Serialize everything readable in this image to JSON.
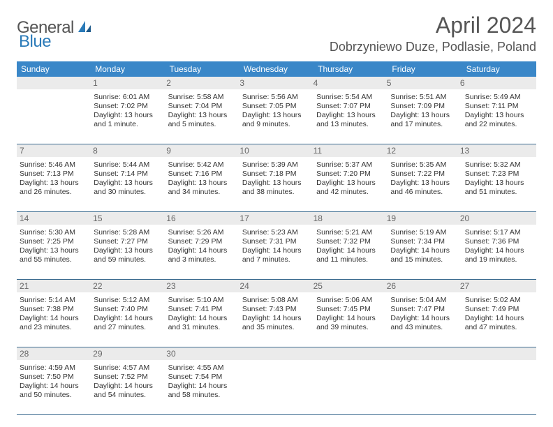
{
  "logo": {
    "word1": "General",
    "word2": "Blue"
  },
  "title": "April 2024",
  "location": "Dobrzyniewo Duze, Podlasie, Poland",
  "colors": {
    "header_bg": "#3a87c8",
    "rule": "#3a6a8f",
    "daynum_bg": "#ebebeb",
    "text": "#555555"
  },
  "weekdays": [
    "Sunday",
    "Monday",
    "Tuesday",
    "Wednesday",
    "Thursday",
    "Friday",
    "Saturday"
  ],
  "weeks": [
    [
      {
        "num": "",
        "lines": []
      },
      {
        "num": "1",
        "lines": [
          "Sunrise: 6:01 AM",
          "Sunset: 7:02 PM",
          "Daylight: 13 hours",
          "and 1 minute."
        ]
      },
      {
        "num": "2",
        "lines": [
          "Sunrise: 5:58 AM",
          "Sunset: 7:04 PM",
          "Daylight: 13 hours",
          "and 5 minutes."
        ]
      },
      {
        "num": "3",
        "lines": [
          "Sunrise: 5:56 AM",
          "Sunset: 7:05 PM",
          "Daylight: 13 hours",
          "and 9 minutes."
        ]
      },
      {
        "num": "4",
        "lines": [
          "Sunrise: 5:54 AM",
          "Sunset: 7:07 PM",
          "Daylight: 13 hours",
          "and 13 minutes."
        ]
      },
      {
        "num": "5",
        "lines": [
          "Sunrise: 5:51 AM",
          "Sunset: 7:09 PM",
          "Daylight: 13 hours",
          "and 17 minutes."
        ]
      },
      {
        "num": "6",
        "lines": [
          "Sunrise: 5:49 AM",
          "Sunset: 7:11 PM",
          "Daylight: 13 hours",
          "and 22 minutes."
        ]
      }
    ],
    [
      {
        "num": "7",
        "lines": [
          "Sunrise: 5:46 AM",
          "Sunset: 7:13 PM",
          "Daylight: 13 hours",
          "and 26 minutes."
        ]
      },
      {
        "num": "8",
        "lines": [
          "Sunrise: 5:44 AM",
          "Sunset: 7:14 PM",
          "Daylight: 13 hours",
          "and 30 minutes."
        ]
      },
      {
        "num": "9",
        "lines": [
          "Sunrise: 5:42 AM",
          "Sunset: 7:16 PM",
          "Daylight: 13 hours",
          "and 34 minutes."
        ]
      },
      {
        "num": "10",
        "lines": [
          "Sunrise: 5:39 AM",
          "Sunset: 7:18 PM",
          "Daylight: 13 hours",
          "and 38 minutes."
        ]
      },
      {
        "num": "11",
        "lines": [
          "Sunrise: 5:37 AM",
          "Sunset: 7:20 PM",
          "Daylight: 13 hours",
          "and 42 minutes."
        ]
      },
      {
        "num": "12",
        "lines": [
          "Sunrise: 5:35 AM",
          "Sunset: 7:22 PM",
          "Daylight: 13 hours",
          "and 46 minutes."
        ]
      },
      {
        "num": "13",
        "lines": [
          "Sunrise: 5:32 AM",
          "Sunset: 7:23 PM",
          "Daylight: 13 hours",
          "and 51 minutes."
        ]
      }
    ],
    [
      {
        "num": "14",
        "lines": [
          "Sunrise: 5:30 AM",
          "Sunset: 7:25 PM",
          "Daylight: 13 hours",
          "and 55 minutes."
        ]
      },
      {
        "num": "15",
        "lines": [
          "Sunrise: 5:28 AM",
          "Sunset: 7:27 PM",
          "Daylight: 13 hours",
          "and 59 minutes."
        ]
      },
      {
        "num": "16",
        "lines": [
          "Sunrise: 5:26 AM",
          "Sunset: 7:29 PM",
          "Daylight: 14 hours",
          "and 3 minutes."
        ]
      },
      {
        "num": "17",
        "lines": [
          "Sunrise: 5:23 AM",
          "Sunset: 7:31 PM",
          "Daylight: 14 hours",
          "and 7 minutes."
        ]
      },
      {
        "num": "18",
        "lines": [
          "Sunrise: 5:21 AM",
          "Sunset: 7:32 PM",
          "Daylight: 14 hours",
          "and 11 minutes."
        ]
      },
      {
        "num": "19",
        "lines": [
          "Sunrise: 5:19 AM",
          "Sunset: 7:34 PM",
          "Daylight: 14 hours",
          "and 15 minutes."
        ]
      },
      {
        "num": "20",
        "lines": [
          "Sunrise: 5:17 AM",
          "Sunset: 7:36 PM",
          "Daylight: 14 hours",
          "and 19 minutes."
        ]
      }
    ],
    [
      {
        "num": "21",
        "lines": [
          "Sunrise: 5:14 AM",
          "Sunset: 7:38 PM",
          "Daylight: 14 hours",
          "and 23 minutes."
        ]
      },
      {
        "num": "22",
        "lines": [
          "Sunrise: 5:12 AM",
          "Sunset: 7:40 PM",
          "Daylight: 14 hours",
          "and 27 minutes."
        ]
      },
      {
        "num": "23",
        "lines": [
          "Sunrise: 5:10 AM",
          "Sunset: 7:41 PM",
          "Daylight: 14 hours",
          "and 31 minutes."
        ]
      },
      {
        "num": "24",
        "lines": [
          "Sunrise: 5:08 AM",
          "Sunset: 7:43 PM",
          "Daylight: 14 hours",
          "and 35 minutes."
        ]
      },
      {
        "num": "25",
        "lines": [
          "Sunrise: 5:06 AM",
          "Sunset: 7:45 PM",
          "Daylight: 14 hours",
          "and 39 minutes."
        ]
      },
      {
        "num": "26",
        "lines": [
          "Sunrise: 5:04 AM",
          "Sunset: 7:47 PM",
          "Daylight: 14 hours",
          "and 43 minutes."
        ]
      },
      {
        "num": "27",
        "lines": [
          "Sunrise: 5:02 AM",
          "Sunset: 7:49 PM",
          "Daylight: 14 hours",
          "and 47 minutes."
        ]
      }
    ],
    [
      {
        "num": "28",
        "lines": [
          "Sunrise: 4:59 AM",
          "Sunset: 7:50 PM",
          "Daylight: 14 hours",
          "and 50 minutes."
        ]
      },
      {
        "num": "29",
        "lines": [
          "Sunrise: 4:57 AM",
          "Sunset: 7:52 PM",
          "Daylight: 14 hours",
          "and 54 minutes."
        ]
      },
      {
        "num": "30",
        "lines": [
          "Sunrise: 4:55 AM",
          "Sunset: 7:54 PM",
          "Daylight: 14 hours",
          "and 58 minutes."
        ]
      },
      {
        "num": "",
        "lines": []
      },
      {
        "num": "",
        "lines": []
      },
      {
        "num": "",
        "lines": []
      },
      {
        "num": "",
        "lines": []
      }
    ]
  ]
}
